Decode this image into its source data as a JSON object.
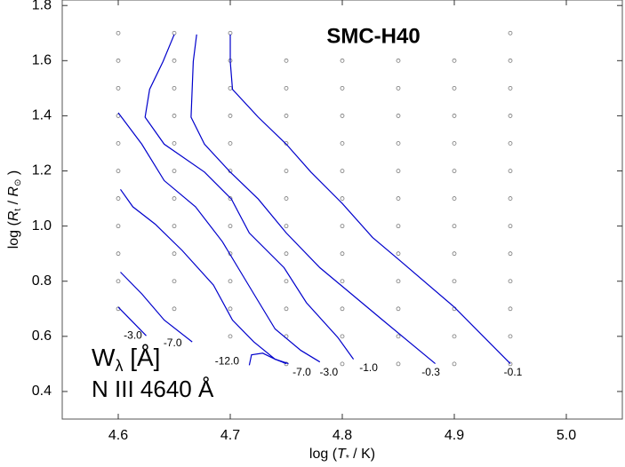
{
  "chart_data": {
    "type": "contour",
    "title": "SMC-H40",
    "annotation": {
      "quantity": "W",
      "quantity_subscript": "λ",
      "unit": " [Å]",
      "line": "N III 4640 Å"
    },
    "xlabel": [
      {
        "text": "log ("
      },
      {
        "text": "T",
        "style": "italic"
      },
      {
        "text": "*",
        "style": "sub"
      },
      {
        "text": " / K)"
      }
    ],
    "ylabel": [
      {
        "text": "log ("
      },
      {
        "text": "R",
        "style": "italic"
      },
      {
        "text": "t",
        "style": "sub"
      },
      {
        "text": " / "
      },
      {
        "text": "R",
        "style": "italic"
      },
      {
        "text": "⊙",
        "style": "sub"
      },
      {
        "text": " )"
      }
    ],
    "xlim": [
      4.55,
      5.05
    ],
    "ylim": [
      0.3,
      1.82
    ],
    "xticks": [
      4.6,
      4.7,
      4.8,
      4.9,
      {
        "value": 5.0,
        "label": "5.0"
      }
    ],
    "yticks": [
      0.4,
      0.6,
      0.8,
      {
        "value": 1.0,
        "label": "1.0"
      },
      1.2,
      1.4,
      1.6,
      1.8
    ],
    "line_color": "#0000cc",
    "point_color": "#777777",
    "grid_points": [
      {
        "y": 1.7,
        "x": [
          4.6,
          4.65,
          4.7,
          4.95
        ]
      },
      {
        "y": 1.6,
        "x": [
          4.6,
          4.65,
          4.7,
          4.75,
          4.8,
          4.85,
          4.9,
          4.95
        ]
      },
      {
        "y": 1.5,
        "x": [
          4.6,
          4.65,
          4.7,
          4.75,
          4.8,
          4.85,
          4.9,
          4.95
        ]
      },
      {
        "y": 1.4,
        "x": [
          4.6,
          4.65,
          4.7,
          4.75,
          4.8,
          4.85,
          4.9,
          4.95
        ]
      },
      {
        "y": 1.3,
        "x": [
          4.6,
          4.65,
          4.7,
          4.75,
          4.8,
          4.85,
          4.9,
          4.95
        ]
      },
      {
        "y": 1.2,
        "x": [
          4.6,
          4.65,
          4.7,
          4.75,
          4.8,
          4.85,
          4.9,
          4.95
        ]
      },
      {
        "y": 1.1,
        "x": [
          4.6,
          4.65,
          4.7,
          4.75,
          4.8,
          4.85,
          4.9,
          4.95
        ]
      },
      {
        "y": 1.0,
        "x": [
          4.6,
          4.65,
          4.7,
          4.75,
          4.8,
          4.85,
          4.9,
          4.95
        ]
      },
      {
        "y": 0.9,
        "x": [
          4.6,
          4.65,
          4.7,
          4.75,
          4.8,
          4.85,
          4.9,
          4.95
        ]
      },
      {
        "y": 0.8,
        "x": [
          4.6,
          4.65,
          4.7,
          4.75,
          4.8,
          4.85,
          4.9,
          4.95
        ]
      },
      {
        "y": 0.7,
        "x": [
          4.6,
          4.65,
          4.7,
          4.75,
          4.8,
          4.85,
          4.9,
          4.95
        ]
      },
      {
        "y": 0.6,
        "x": [
          4.7,
          4.75,
          4.8,
          4.85,
          4.9,
          4.95
        ]
      },
      {
        "y": 0.5,
        "x": [
          4.75,
          4.8,
          4.85,
          4.9,
          4.95
        ]
      }
    ],
    "contours": [
      {
        "level": -0.1,
        "x": [
          4.7,
          4.7,
          4.702,
          4.725,
          4.75,
          4.772,
          4.8,
          4.827,
          4.85,
          4.9,
          4.95
        ],
        "y": [
          1.695,
          1.597,
          1.496,
          1.395,
          1.297,
          1.196,
          1.082,
          0.959,
          0.88,
          0.706,
          0.501
        ]
      },
      {
        "level": -0.3,
        "x": [
          4.67,
          4.667,
          4.665,
          4.677,
          4.7,
          4.725,
          4.75,
          4.78,
          4.836,
          4.883
        ],
        "y": [
          1.695,
          1.597,
          1.395,
          1.297,
          1.196,
          1.098,
          0.975,
          0.849,
          0.659,
          0.501
        ]
      },
      {
        "level": -1.0,
        "level_label": "-1.0",
        "x": [
          4.65,
          4.64,
          4.628,
          4.624,
          4.641,
          4.677,
          4.701,
          4.717,
          4.748,
          4.768,
          4.796,
          4.81
        ],
        "y": [
          1.695,
          1.597,
          1.496,
          1.395,
          1.297,
          1.196,
          1.098,
          0.975,
          0.849,
          0.722,
          0.596,
          0.517
        ]
      },
      {
        "level": -3.0,
        "level_label": "-3.0",
        "x": [
          4.6,
          4.621,
          4.641,
          4.669,
          4.693,
          4.721,
          4.74,
          4.763,
          4.78
        ],
        "y": [
          1.411,
          1.297,
          1.165,
          1.07,
          0.943,
          0.754,
          0.627,
          0.549,
          0.507
        ]
      },
      {
        "level": -7.0,
        "level_label": "-7.0",
        "x": [
          4.602,
          4.613,
          4.633,
          4.657,
          4.685,
          4.702,
          4.721,
          4.74,
          4.752
        ],
        "y": [
          1.133,
          1.07,
          1.007,
          0.912,
          0.786,
          0.659,
          0.58,
          0.517,
          0.501
        ]
      },
      {
        "level": -12.0,
        "level_label": "-12.0",
        "x": [
          4.717,
          4.719,
          4.729,
          4.74,
          4.75
        ],
        "y": [
          0.495,
          0.533,
          0.539,
          0.517,
          0.501
        ]
      },
      {
        "level": -7.0,
        "level_label": "-7.0",
        "x": [
          4.602,
          4.621,
          4.641,
          4.666
        ],
        "y": [
          0.833,
          0.754,
          0.659,
          0.58
        ]
      },
      {
        "level": -3.0,
        "level_label": "-3.0",
        "x": [
          4.6,
          4.613,
          4.625
        ],
        "y": [
          0.706,
          0.652,
          0.602
        ]
      }
    ]
  }
}
